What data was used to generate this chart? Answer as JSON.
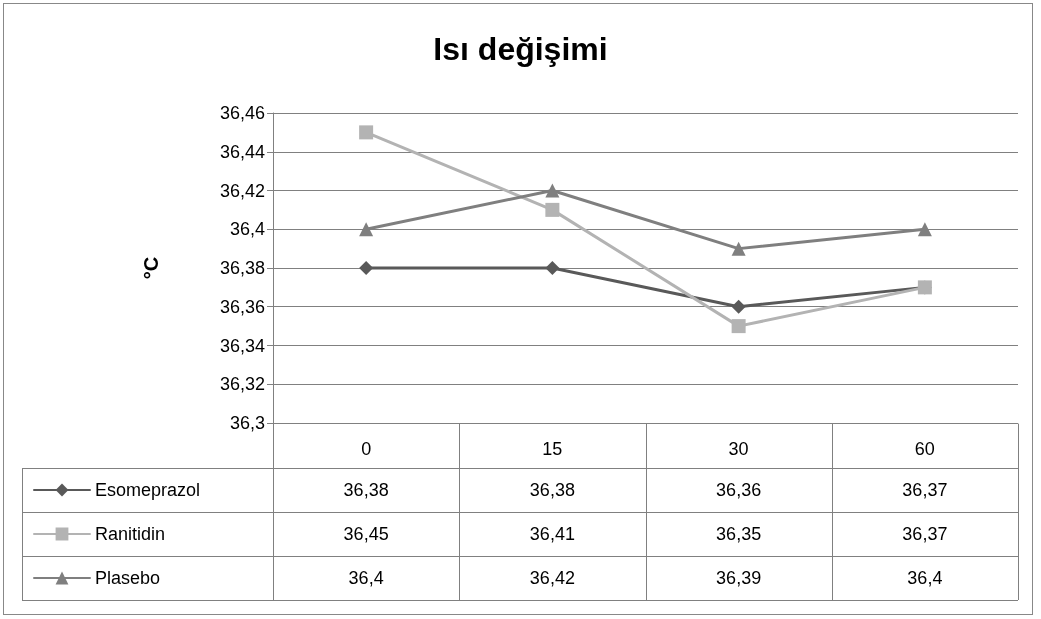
{
  "chart_data": {
    "type": "line",
    "title": "Isı değişimi",
    "ylabel": "°C",
    "categories": [
      "0",
      "15",
      "30",
      "60"
    ],
    "series": [
      {
        "name": "Esomeprazol",
        "color": "#595959",
        "marker": "diamond",
        "values": [
          36.38,
          36.38,
          36.36,
          36.37
        ],
        "value_labels": [
          "36,38",
          "36,38",
          "36,36",
          "36,37"
        ]
      },
      {
        "name": "Ranitidin",
        "color": "#b3b3b3",
        "marker": "square",
        "values": [
          36.45,
          36.41,
          36.35,
          36.37
        ],
        "value_labels": [
          "36,45",
          "36,41",
          "36,35",
          "36,37"
        ]
      },
      {
        "name": "Plasebo",
        "color": "#7f7f7f",
        "marker": "triangle",
        "values": [
          36.4,
          36.42,
          36.39,
          36.4
        ],
        "value_labels": [
          "36,4",
          "36,42",
          "36,39",
          "36,4"
        ]
      }
    ],
    "ylim": [
      36.3,
      36.46
    ],
    "yticks": [
      {
        "value": 36.3,
        "label": "36,3"
      },
      {
        "value": 36.32,
        "label": "36,32"
      },
      {
        "value": 36.34,
        "label": "36,34"
      },
      {
        "value": 36.36,
        "label": "36,36"
      },
      {
        "value": 36.38,
        "label": "36,38"
      },
      {
        "value": 36.4,
        "label": "36,4"
      },
      {
        "value": 36.42,
        "label": "36,42"
      },
      {
        "value": 36.44,
        "label": "36,44"
      },
      {
        "value": 36.46,
        "label": "36,46"
      }
    ],
    "grid": "y",
    "legend": "bottom left"
  }
}
